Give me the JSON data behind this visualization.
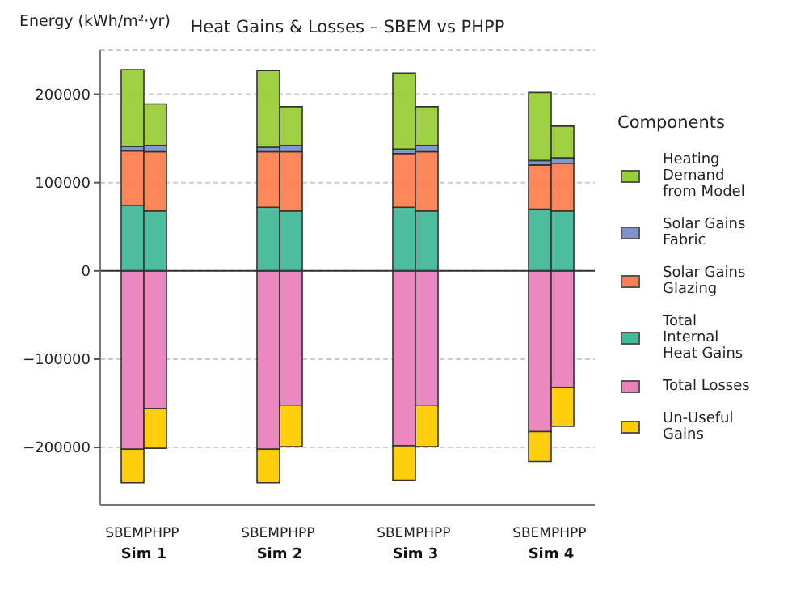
{
  "chart_data": {
    "type": "bar",
    "stacked": true,
    "title": "Heat Gains & Losses – SBEM vs PHPP",
    "ylabel": "Energy (kWh/m²·yr)",
    "legend_title": "Components",
    "legend": "right",
    "grid": "y",
    "categories": [
      "SBEM",
      "PHPP",
      null,
      null,
      null,
      null,
      "SBEM",
      "PHPP",
      null,
      null,
      null,
      null,
      "SBEM",
      "PHPP",
      null,
      null,
      null,
      null,
      "SBEM",
      "PHPP"
    ],
    "annotations": [
      "Sim 1",
      "Sim 2",
      "Sim 3",
      "Sim 4"
    ],
    "ylim": [
      -265000,
      250000
    ],
    "yticks": [
      -200000,
      -100000,
      0,
      100000,
      200000
    ],
    "ref_lines": [
      {
        "axis": "y",
        "value": 0,
        "color": "#333333"
      }
    ],
    "series": [
      {
        "name": "Total Internal Heat Gains",
        "color": "#45b89a",
        "values": [
          74000,
          68000,
          null,
          null,
          null,
          null,
          72000,
          68000,
          null,
          null,
          null,
          null,
          72000,
          68000,
          null,
          null,
          null,
          null,
          70000,
          68000
        ]
      },
      {
        "name": "Solar Gains Glazing",
        "color": "#ff7f50",
        "values": [
          62000,
          67000,
          null,
          null,
          null,
          null,
          63000,
          67000,
          null,
          null,
          null,
          null,
          61000,
          67000,
          null,
          null,
          null,
          null,
          50000,
          54000
        ]
      },
      {
        "name": "Solar Gains Fabric",
        "color": "#7b93c8",
        "values": [
          5000,
          7000,
          null,
          null,
          null,
          null,
          5000,
          7000,
          null,
          null,
          null,
          null,
          5000,
          7000,
          null,
          null,
          null,
          null,
          5000,
          6000
        ]
      },
      {
        "name": "Heating Demand from Model",
        "color": "#9acd3a",
        "values": [
          87000,
          47000,
          null,
          null,
          null,
          null,
          87000,
          44000,
          null,
          null,
          null,
          null,
          86000,
          44000,
          null,
          null,
          null,
          null,
          77000,
          36000
        ]
      },
      {
        "name": "Total Losses",
        "color": "#e982bc",
        "values": [
          -202000,
          -156000,
          null,
          null,
          null,
          null,
          -202000,
          -152000,
          null,
          null,
          null,
          null,
          -198000,
          -152000,
          null,
          null,
          null,
          null,
          -182000,
          -132000
        ]
      },
      {
        "name": "Un-Useful Gains",
        "color": "#ffcc00",
        "values": [
          -38000,
          -45000,
          null,
          null,
          null,
          null,
          -38000,
          -47000,
          null,
          null,
          null,
          null,
          -39000,
          -47000,
          null,
          null,
          null,
          null,
          -34000,
          -44000
        ]
      }
    ]
  }
}
